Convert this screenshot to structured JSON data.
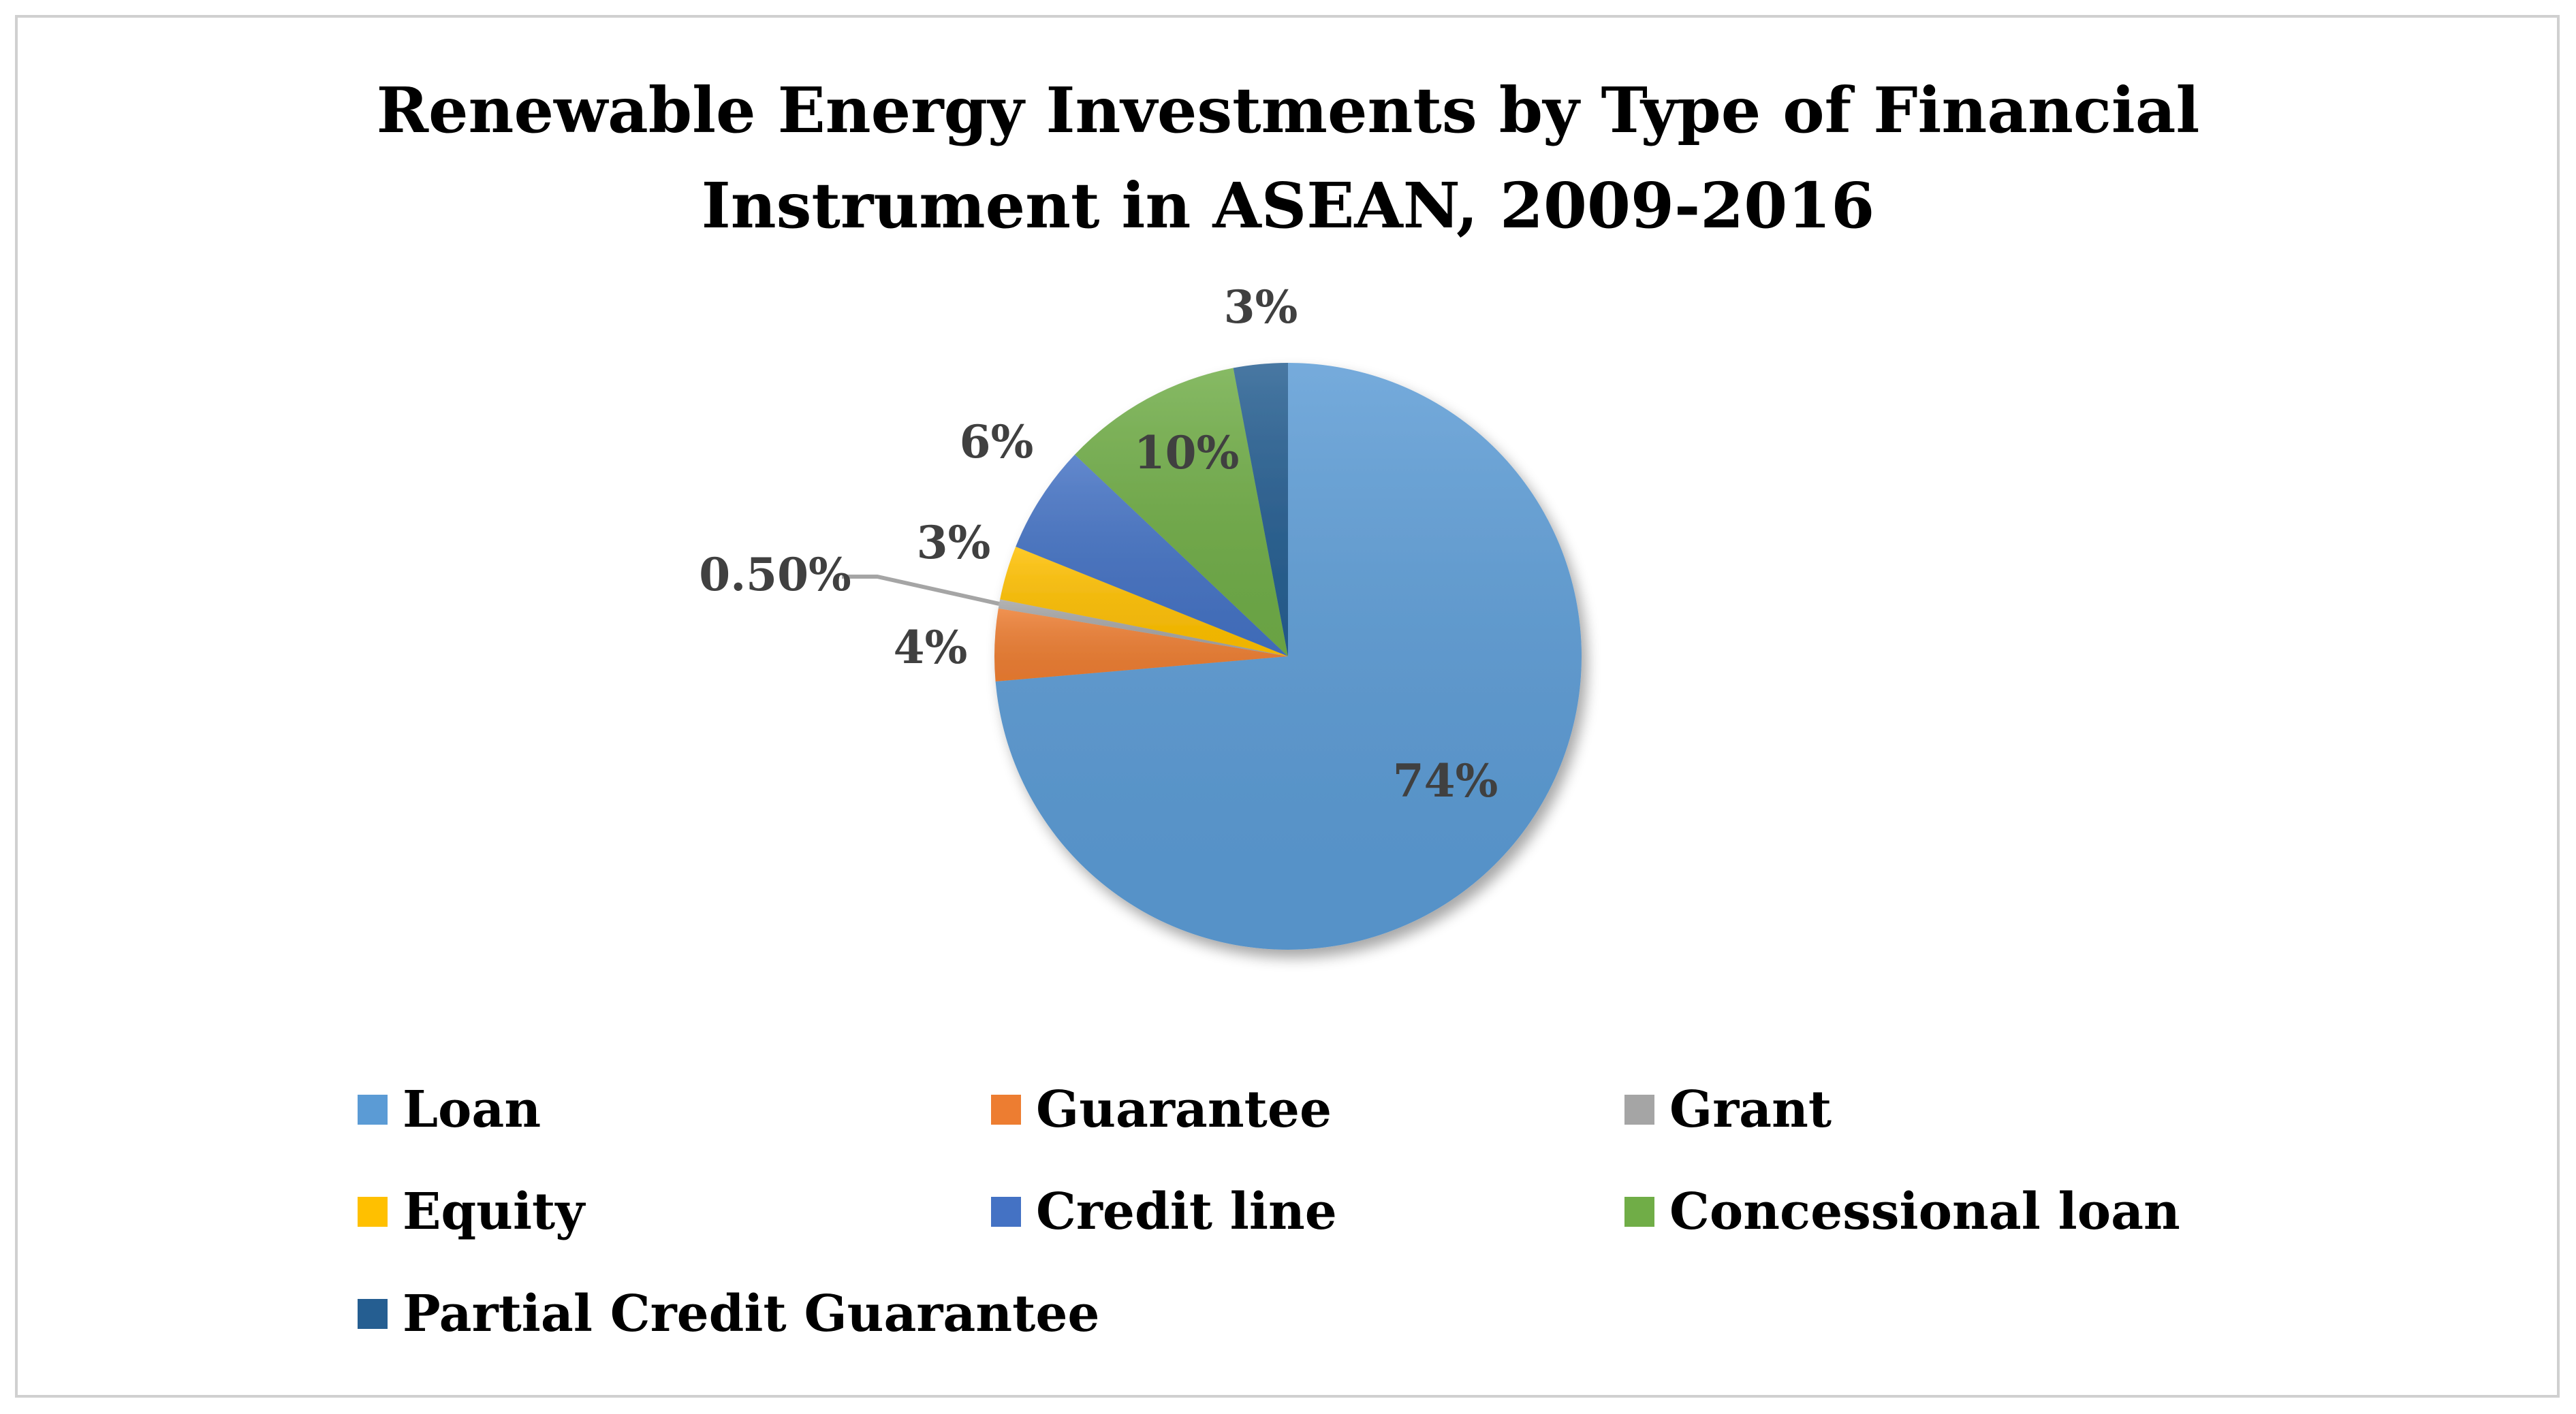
{
  "chart_data": {
    "type": "pie",
    "title": [
      "Renewable Energy Investments by Type of Financial",
      "Instrument in ASEAN, 2009-2016"
    ],
    "slices": [
      {
        "name": "Loan",
        "value": 74,
        "label": "74%",
        "color": "#5B9BD5"
      },
      {
        "name": "Guarantee",
        "value": 4,
        "label": "4%",
        "color": "#ED7D31"
      },
      {
        "name": "Grant",
        "value": 0.5,
        "label": "0.50%",
        "color": "#A5A5A5"
      },
      {
        "name": "Equity",
        "value": 3,
        "label": "3%",
        "color": "#FFC000"
      },
      {
        "name": "Credit line",
        "value": 6,
        "label": "6%",
        "color": "#4472C4"
      },
      {
        "name": "Concessional loan",
        "value": 10,
        "label": "10%",
        "color": "#70AD47"
      },
      {
        "name": "Partial Credit Guarantee",
        "value": 3,
        "label": "3%",
        "color": "#255E91"
      }
    ],
    "legend_position": "bottom"
  }
}
